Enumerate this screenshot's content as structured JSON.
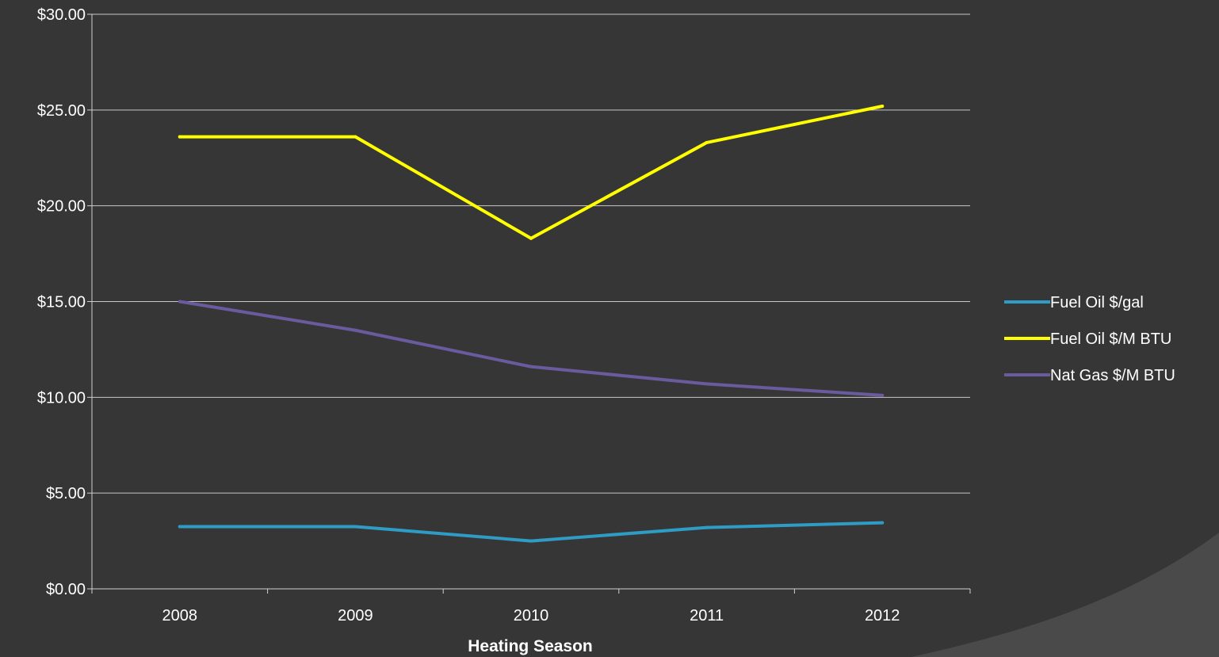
{
  "colors": {
    "background": "#363636",
    "gridline": "#c8c8c8",
    "axis": "#d0d0d0",
    "text": "#ffffff",
    "corner_accent": "#4a4a4a"
  },
  "chart_data": {
    "type": "line",
    "title": "",
    "xlabel": "Heating Season",
    "ylabel": "",
    "categories": [
      "2008",
      "2009",
      "2010",
      "2011",
      "2012"
    ],
    "ylim": [
      0,
      30
    ],
    "y_ticks": [
      0,
      5,
      10,
      15,
      20,
      25,
      30
    ],
    "y_tick_labels": [
      "$0.00",
      "$5.00",
      "$10.00",
      "$15.00",
      "$20.00",
      "$25.00",
      "$30.00"
    ],
    "grid": "horizontal",
    "legend_position": "right",
    "series": [
      {
        "name": "Fuel Oil $/gal",
        "color": "#2e9cc4",
        "values": [
          3.25,
          3.25,
          2.5,
          3.2,
          3.45
        ]
      },
      {
        "name": "Fuel Oil $/M BTU",
        "color": "#ffff00",
        "values": [
          23.6,
          23.6,
          18.3,
          23.3,
          25.2
        ]
      },
      {
        "name": "Nat Gas $/M BTU",
        "color": "#6a5a9e",
        "values": [
          15.0,
          13.5,
          11.6,
          10.7,
          10.1
        ]
      }
    ]
  }
}
